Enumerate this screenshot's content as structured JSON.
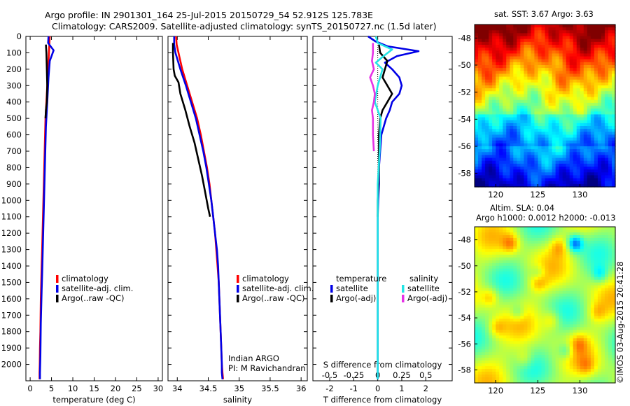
{
  "header": {
    "line1": "Argo profile: IN 2901301_164 25-Jul-2015 20150729_54 52.912S 125.783E",
    "line2": "Climatology: CARS2009. Satellite-adjusted climatology: synTS_20150727.nc (1.5d later)"
  },
  "sst_title": "sat. SST: 3.67 Argo: 3.63",
  "sla_title1": "Altim. SLA: 0.04",
  "sla_title2": "Argo h1000: 0.0012 h2000: -0.013",
  "imos_stamp": "©IMOS 03-Aug-2015 20:41:28",
  "colors": {
    "climatology": "#ff0000",
    "satellite": "#0000e6",
    "argo": "#000000",
    "s_satellite": "#22e5e5",
    "s_argo": "#e632e6"
  },
  "chart_data": [
    {
      "type": "line",
      "id": "temperature",
      "xlabel": "temperature (deg C)",
      "ylabel": "",
      "xlim": [
        -1,
        31
      ],
      "ylim": [
        2100,
        0
      ],
      "xticks": [
        "0",
        "5",
        "10",
        "15",
        "20",
        "25",
        "30"
      ],
      "xtick_values": [
        0,
        5,
        10,
        15,
        20,
        25,
        30
      ],
      "yticks": [
        "0",
        "100",
        "200",
        "300",
        "400",
        "500",
        "600",
        "700",
        "800",
        "900",
        "1000",
        "1100",
        "1200",
        "1300",
        "1400",
        "1500",
        "1600",
        "1700",
        "1800",
        "1900",
        "2000"
      ],
      "ytick_values": [
        0,
        100,
        200,
        300,
        400,
        500,
        600,
        700,
        800,
        900,
        1000,
        1100,
        1200,
        1300,
        1400,
        1500,
        1600,
        1700,
        1800,
        1900,
        2000
      ],
      "legend": [
        "climatology",
        "satellite-adj. clim.",
        "Argo(..raw -QC)"
      ],
      "series": [
        {
          "name": "climatology",
          "color": "#ff0000",
          "x": [
            4.6,
            4.5,
            4.4,
            4.2,
            4.0,
            3.8,
            3.6,
            3.5,
            3.4,
            3.3,
            3.2,
            3.1,
            3.0,
            2.9,
            2.8,
            2.7,
            2.6,
            2.5,
            2.45,
            2.4,
            2.3,
            2.25,
            2.2,
            2.2
          ],
          "y": [
            0,
            50,
            100,
            200,
            300,
            400,
            500,
            600,
            700,
            800,
            900,
            1000,
            1100,
            1200,
            1300,
            1400,
            1500,
            1600,
            1700,
            1800,
            1900,
            2000,
            2050,
            2090
          ]
        },
        {
          "name": "satellite-adj. clim.",
          "color": "#0000e6",
          "x": [
            4.3,
            4.2,
            5.5,
            4.6,
            4.3,
            4.1,
            3.9,
            3.7,
            3.6,
            3.5,
            3.4,
            3.3,
            3.2,
            3.1,
            3.0,
            2.9,
            2.8,
            2.7,
            2.6,
            2.5,
            2.45,
            2.4,
            2.3,
            2.3
          ],
          "y": [
            0,
            40,
            85,
            150,
            250,
            350,
            450,
            550,
            650,
            750,
            850,
            950,
            1050,
            1150,
            1250,
            1350,
            1450,
            1550,
            1650,
            1750,
            1850,
            1950,
            2050,
            2090
          ]
        },
        {
          "name": "Argo(..raw -QC)",
          "color": "#000000",
          "x": [
            3.7,
            3.8,
            3.9,
            4.0,
            3.9,
            3.7,
            3.6
          ],
          "y": [
            50,
            100,
            200,
            300,
            400,
            450,
            500
          ]
        }
      ],
      "annotations": []
    },
    {
      "type": "line",
      "id": "salinity",
      "xlabel": "salinity",
      "ylabel": "",
      "xlim": [
        33.85,
        36.1
      ],
      "ylim": [
        2100,
        0
      ],
      "xticks": [
        "34",
        "34.5",
        "35",
        "35.5",
        "36"
      ],
      "xtick_values": [
        34,
        34.5,
        35,
        35.5,
        36
      ],
      "yticks": [],
      "legend": [
        "climatology",
        "satellite-adj. clim.",
        "Argo(..raw -QC)"
      ],
      "series": [
        {
          "name": "climatology",
          "color": "#ff0000",
          "x": [
            33.98,
            33.99,
            34.02,
            34.08,
            34.16,
            34.24,
            34.32,
            34.38,
            34.43,
            34.48,
            34.52,
            34.55,
            34.58,
            34.61,
            34.63,
            34.65,
            34.67,
            34.68,
            34.69,
            34.7,
            34.71,
            34.72,
            34.73,
            34.74
          ],
          "y": [
            0,
            50,
            100,
            200,
            300,
            400,
            500,
            600,
            700,
            800,
            900,
            1000,
            1100,
            1200,
            1300,
            1400,
            1500,
            1600,
            1700,
            1800,
            1900,
            2000,
            2050,
            2090
          ]
        },
        {
          "name": "satellite-adj. clim.",
          "color": "#0000e6",
          "x": [
            33.95,
            33.95,
            33.97,
            34.05,
            34.14,
            34.22,
            34.3,
            34.36,
            34.42,
            34.47,
            34.51,
            34.55,
            34.58,
            34.61,
            34.64,
            34.66,
            34.67,
            34.68,
            34.69,
            34.7,
            34.71,
            34.72,
            34.72,
            34.73
          ],
          "y": [
            0,
            50,
            100,
            200,
            300,
            400,
            500,
            600,
            700,
            800,
            900,
            1000,
            1100,
            1200,
            1300,
            1400,
            1500,
            1600,
            1700,
            1800,
            1900,
            2000,
            2050,
            2090
          ]
        },
        {
          "name": "Argo(..raw -QC)",
          "color": "#000000",
          "x": [
            33.93,
            33.93,
            33.94,
            33.96,
            34.02,
            34.05,
            34.13,
            34.2,
            34.28,
            34.34,
            34.4,
            34.45,
            34.5,
            34.53
          ],
          "y": [
            40,
            100,
            200,
            240,
            280,
            350,
            450,
            550,
            650,
            750,
            850,
            950,
            1050,
            1100
          ]
        }
      ],
      "annotations": [
        "Indian ARGO",
        "PI: M Ravichandran"
      ]
    },
    {
      "type": "line",
      "id": "difference",
      "xlabel": "T difference from climatology",
      "xlabel_top": "S difference from climatology",
      "xlim": [
        -2.7,
        3.1
      ],
      "ylim": [
        2100,
        0
      ],
      "xticks": [
        "-2",
        "-1",
        "0",
        "1",
        "2"
      ],
      "xtick_values": [
        -2,
        -1,
        0,
        1,
        2
      ],
      "xticks_s": [
        "-0.5",
        "-0.25",
        "0",
        "0.25",
        "0.5"
      ],
      "xtick_values_s": [
        -0.5,
        -0.25,
        0,
        0.25,
        0.5
      ],
      "s_scale": 4,
      "legend_groups": [
        {
          "title": "temperature",
          "items": [
            "satellite",
            "Argo(-adj)"
          ]
        },
        {
          "title": "salinity",
          "items": [
            "satellite",
            "Argo(-adj)"
          ]
        }
      ],
      "series": [
        {
          "name": "T satellite",
          "group": "temperature",
          "color": "#0000e6",
          "x": [
            -0.4,
            -0.1,
            0.4,
            1.7,
            0.8,
            0.3,
            0.6,
            0.9,
            1.0,
            0.9,
            0.6,
            0.5,
            0.35,
            0.25,
            0.15,
            0.1,
            0.05,
            0.05,
            0.02,
            0.0,
            0.0,
            0.0,
            0.0,
            0.0
          ],
          "y": [
            0,
            30,
            60,
            90,
            120,
            160,
            200,
            250,
            300,
            350,
            400,
            450,
            500,
            550,
            600,
            700,
            800,
            900,
            1000,
            1100,
            1300,
            1500,
            1800,
            2090
          ]
        },
        {
          "name": "T Argo(-adj)",
          "group": "temperature",
          "color": "#000000",
          "x": [
            0.05,
            0.1,
            0.4,
            0.3,
            0.2,
            0.4,
            0.6,
            0.4,
            0.2,
            0.1,
            0.05,
            0.05,
            0.0,
            0.0
          ],
          "y": [
            50,
            100,
            150,
            200,
            250,
            300,
            350,
            400,
            450,
            500,
            600,
            800,
            1000,
            1100
          ]
        },
        {
          "name": "S satellite",
          "group": "salinity",
          "color": "#22e5e5",
          "x": [
            -0.02,
            0.0,
            0.15,
            0.06,
            -0.02,
            0.05,
            0.0,
            -0.03,
            0.03,
            0.02,
            0.0,
            0.0,
            0.0,
            0.0,
            0.0
          ],
          "y": [
            0,
            40,
            80,
            120,
            160,
            200,
            300,
            400,
            500,
            700,
            900,
            1100,
            1500,
            1800,
            2090
          ]
        },
        {
          "name": "S Argo(-adj)",
          "group": "salinity",
          "color": "#e632e6",
          "x": [
            -0.05,
            -0.05,
            -0.06,
            -0.04,
            -0.08,
            -0.05,
            -0.03,
            -0.04,
            -0.06,
            -0.05,
            -0.05,
            -0.04
          ],
          "y": [
            40,
            100,
            150,
            200,
            250,
            300,
            350,
            400,
            450,
            500,
            600,
            700
          ]
        }
      ],
      "annotations": []
    },
    {
      "type": "heatmap",
      "id": "sst-map",
      "title": "sat. SST: 3.67 Argo: 3.63",
      "xlim": [
        117.5,
        134.2
      ],
      "ylim": [
        -59,
        -47
      ],
      "xticks": [
        "120",
        "125",
        "130"
      ],
      "xtick_values": [
        120,
        125,
        130
      ],
      "yticks": [
        "-48",
        "-50",
        "-52",
        "-54",
        "-56",
        "-58"
      ],
      "ytick_values": [
        -48,
        -50,
        -52,
        -54,
        -56,
        -58
      ],
      "colormap": "jet"
    },
    {
      "type": "heatmap",
      "id": "sla-map",
      "title": "Altim. SLA: 0.04",
      "xlim": [
        117.5,
        134.2
      ],
      "ylim": [
        -59,
        -47
      ],
      "xticks": [
        "120",
        "125",
        "130"
      ],
      "xtick_values": [
        120,
        125,
        130
      ],
      "yticks": [
        "-48",
        "-50",
        "-52",
        "-54",
        "-56",
        "-58"
      ],
      "ytick_values": [
        -48,
        -50,
        -52,
        -54,
        -56,
        -58
      ],
      "colormap": "jet"
    }
  ]
}
